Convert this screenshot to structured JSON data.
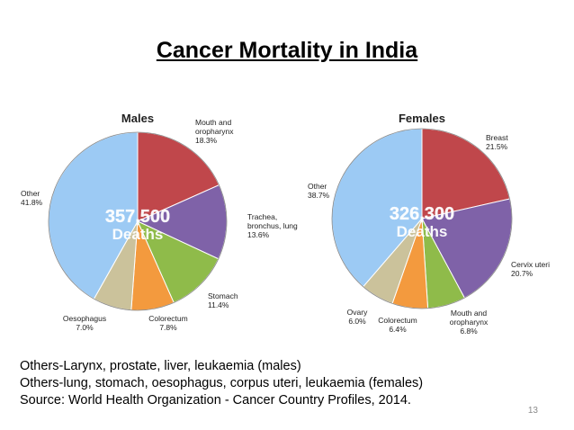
{
  "slide": {
    "title": "Cancer Mortality in India",
    "notes": [
      "Others-Larynx, prostate, liver, leukaemia (males)",
      "Others-lung, stomach, oesophagus, corpus uteri, leukaemia (females)",
      "Source: World Health Organization - Cancer Country Profiles, 2014."
    ],
    "page_number": "13"
  },
  "chart_data": [
    {
      "type": "pie",
      "title": "Males",
      "center_value": "357,500",
      "center_label": "Deaths",
      "start": "12 o'clock",
      "direction": "clockwise",
      "slices": [
        {
          "label": [
            "Mouth and",
            "oropharynx"
          ],
          "value_label": "18.3%",
          "value": 18.3,
          "color": "#c0474b"
        },
        {
          "label": [
            "Trachea,",
            "bronchus, lung"
          ],
          "value_label": "13.6%",
          "value": 13.6,
          "color": "#7f62a8"
        },
        {
          "label": [
            "Stomach"
          ],
          "value_label": "11.4%",
          "value": 11.4,
          "color": "#8fbb4a"
        },
        {
          "label": [
            "Colorectum"
          ],
          "value_label": "7.8%",
          "value": 7.8,
          "color": "#f39a3e"
        },
        {
          "label": [
            "Oesophagus"
          ],
          "value_label": "7.0%",
          "value": 7.0,
          "color": "#cbc29b"
        },
        {
          "label": [
            "Other"
          ],
          "value_label": "41.8%",
          "value": 41.8,
          "color": "#9ccaf4"
        }
      ]
    },
    {
      "type": "pie",
      "title": "Females",
      "center_value": "326,300",
      "center_label": "Deaths",
      "start": "12 o'clock",
      "direction": "clockwise",
      "slices": [
        {
          "label": [
            "Breast"
          ],
          "value_label": "21.5%",
          "value": 21.5,
          "color": "#c0474b"
        },
        {
          "label": [
            "Cervix uteri"
          ],
          "value_label": "20.7%",
          "value": 20.7,
          "color": "#7f62a8"
        },
        {
          "label": [
            "Mouth and",
            "oropharynx"
          ],
          "value_label": "6.8%",
          "value": 6.8,
          "color": "#8fbb4a"
        },
        {
          "label": [
            "Colorectum"
          ],
          "value_label": "6.4%",
          "value": 6.4,
          "color": "#f39a3e"
        },
        {
          "label": [
            "Ovary"
          ],
          "value_label": "6.0%",
          "value": 6.0,
          "color": "#cbc29b"
        },
        {
          "label": [
            "Other"
          ],
          "value_label": "38.7%",
          "value": 38.7,
          "color": "#9ccaf4"
        }
      ]
    }
  ]
}
